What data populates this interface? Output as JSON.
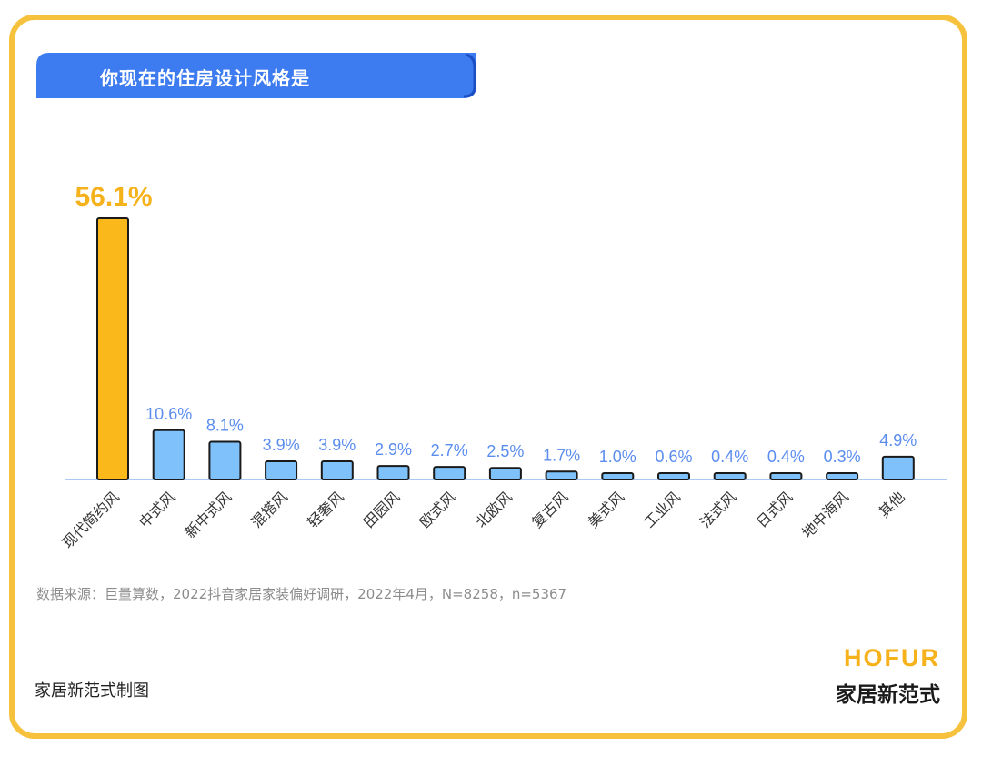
{
  "title": "你现在的住房设计风格是",
  "chart_data": {
    "type": "bar",
    "categories": [
      "现代简约风",
      "中式风",
      "新中式风",
      "混搭风",
      "轻奢风",
      "田园风",
      "欧式风",
      "北欧风",
      "复古风",
      "美式风",
      "工业风",
      "法式风",
      "日式风",
      "地中海风",
      "其他"
    ],
    "values": [
      56.1,
      10.6,
      8.1,
      3.9,
      3.9,
      2.9,
      2.7,
      2.5,
      1.7,
      1.0,
      0.6,
      0.4,
      0.4,
      0.3,
      4.9
    ],
    "labels": [
      "56.1%",
      "10.6%",
      "8.1%",
      "3.9%",
      "3.9%",
      "2.9%",
      "2.7%",
      "2.5%",
      "1.7%",
      "1.0%",
      "0.6%",
      "0.4%",
      "0.4%",
      "0.3%",
      "4.9%"
    ],
    "highlight_index": 0,
    "colors": {
      "highlight": "#fbb81b",
      "bar": "#7ec1fb",
      "label": "#5b8def",
      "highlight_label": "#f6b21b",
      "axis": "#a9c9f2"
    }
  },
  "source": "数据来源：巨量算数，2022抖音家居家装偏好调研，2022年4月，N=8258，n=5367",
  "credit": "家居新范式制图",
  "logo": {
    "en": "HOFUR",
    "cn": "家居新范式"
  },
  "colors": {
    "frame": "#f6c23e",
    "title_band": "#3d7bf0"
  }
}
